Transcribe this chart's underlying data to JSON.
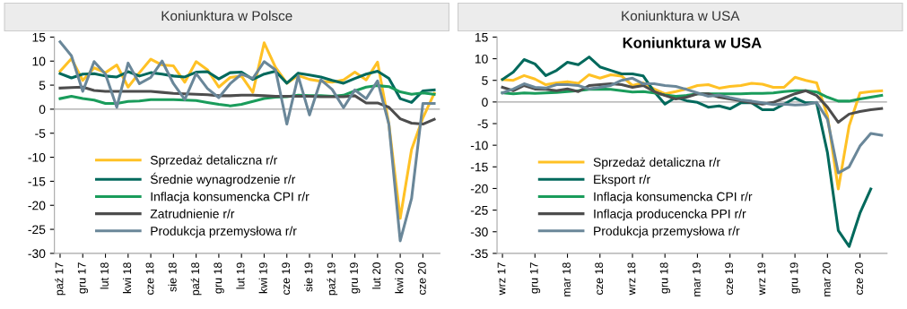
{
  "chart_data": [
    {
      "type": "line",
      "title": "Koniunktura w Polsce",
      "categories": [
        "paź 17",
        null,
        "gru 17",
        null,
        "lut 18",
        null,
        "kwi 18",
        null,
        "cze 18",
        null,
        "sie 18",
        null,
        "paź 18",
        null,
        "gru 18",
        null,
        "lut 19",
        null,
        "kwi 19",
        null,
        "cze 19",
        null,
        "sie 19",
        null,
        "paź 19",
        null,
        "gru 19",
        null,
        "lut 20",
        null,
        "kwi 20",
        null,
        "cze 20",
        null
      ],
      "ylim": [
        -30,
        15
      ],
      "yticks": [
        -30,
        -25,
        -20,
        -15,
        -10,
        -5,
        0,
        5,
        10,
        15
      ],
      "ref_lines": [
        {
          "axis": "y",
          "value": 0,
          "color": "#a6a6a6"
        }
      ],
      "grid": false,
      "legend": "bottom left",
      "line_style": "solid",
      "marker": "none",
      "series": [
        {
          "name": "Sprzedaż detaliczna r/r",
          "color": "#ffc125",
          "values": [
            7.9,
            10.5,
            6.0,
            8.6,
            7.6,
            9.2,
            4.6,
            7.6,
            10.4,
            9.2,
            9.0,
            5.6,
            9.9,
            8.2,
            4.6,
            6.6,
            6.9,
            3.5,
            13.8,
            8.7,
            5.4,
            7.0,
            6.2,
            5.8,
            5.6,
            6.1,
            7.7,
            6.1,
            9.8,
            -3.1,
            -22.7,
            -8.4,
            -1.8,
            3.3
          ]
        },
        {
          "name": "Średnie wynagrodzenie r/r",
          "color": "#00695c",
          "values": [
            7.4,
            6.5,
            7.3,
            7.4,
            6.9,
            6.7,
            7.8,
            6.9,
            7.6,
            7.3,
            6.9,
            6.7,
            7.7,
            7.8,
            6.3,
            7.6,
            7.7,
            6.2,
            7.3,
            7.9,
            5.4,
            7.5,
            7.1,
            6.7,
            6.0,
            5.4,
            6.4,
            7.3,
            7.9,
            6.4,
            2.2,
            1.4,
            3.8,
            4.0
          ]
        },
        {
          "name": "Inflacja konsumencka CPI r/r",
          "color": "#1a9c5b",
          "values": [
            2.2,
            2.7,
            2.2,
            1.9,
            1.2,
            1.2,
            1.6,
            1.7,
            2.0,
            2.0,
            2.0,
            1.9,
            1.8,
            1.4,
            1.0,
            0.7,
            1.0,
            1.6,
            2.2,
            2.5,
            2.6,
            2.9,
            2.8,
            2.8,
            2.7,
            2.9,
            3.8,
            4.6,
            4.9,
            4.7,
            3.6,
            3.1,
            3.4,
            3.1
          ]
        },
        {
          "name": "Zatrudnienie r/r",
          "color": "#4d4d4d",
          "values": [
            4.4,
            4.5,
            4.6,
            3.9,
            3.7,
            3.7,
            3.7,
            3.7,
            3.7,
            3.5,
            3.3,
            3.2,
            3.1,
            3.0,
            2.8,
            2.8,
            2.9,
            2.9,
            2.8,
            2.7,
            2.7,
            2.7,
            2.7,
            2.6,
            2.6,
            2.6,
            2.8,
            1.3,
            1.3,
            0.4,
            -2.0,
            -2.9,
            -3.1,
            -2.1
          ]
        },
        {
          "name": "Produkcja przemysłowa r/r",
          "color": "#6a8799",
          "values": [
            14.0,
            11.1,
            3.7,
            9.9,
            7.3,
            0.4,
            9.6,
            5.3,
            6.6,
            10.0,
            5.3,
            2.0,
            7.4,
            4.3,
            2.4,
            5.3,
            7.3,
            6.4,
            9.9,
            8.2,
            -3.1,
            6.9,
            -1.2,
            6.1,
            4.1,
            0.3,
            4.0,
            2.2,
            5.9,
            -3.1,
            -27.4,
            -18.6,
            1.2,
            1.2
          ]
        }
      ]
    },
    {
      "type": "line",
      "title": "Koniunktura w USA",
      "subtitle": "Koniunktura w USA",
      "categories": [
        "wrz 17",
        null,
        null,
        "gru 17",
        null,
        null,
        "mar 18",
        null,
        null,
        "cze 18",
        null,
        null,
        "wrz 18",
        null,
        null,
        "gru 18",
        null,
        null,
        "mar 19",
        null,
        null,
        "cze 19",
        null,
        null,
        "wrz 19",
        null,
        null,
        "gru 19",
        null,
        null,
        "mar 20",
        null,
        null,
        "cze 20",
        null,
        null
      ],
      "ylim": [
        -35,
        15
      ],
      "yticks": [
        -35,
        -30,
        -25,
        -20,
        -15,
        -10,
        -5,
        0,
        5,
        10,
        15
      ],
      "ref_lines": [
        {
          "axis": "y",
          "value": 0,
          "color": "#a6a6a6"
        }
      ],
      "grid": false,
      "legend": "bottom left",
      "line_style": "solid",
      "marker": "none",
      "series": [
        {
          "name": "Sprzedaż detaliczna r/r",
          "color": "#ffc125",
          "values": [
            5.2,
            5.0,
            6.1,
            5.3,
            4.0,
            4.4,
            4.7,
            4.3,
            6.3,
            5.5,
            6.3,
            6.0,
            3.8,
            4.4,
            3.0,
            1.9,
            2.4,
            3.0,
            3.8,
            4.0,
            3.2,
            3.6,
            3.8,
            4.3,
            4.1,
            3.4,
            3.4,
            5.7,
            5.0,
            4.4,
            -3.2,
            -20.1,
            -5.5,
            2.1,
            2.4,
            2.6
          ]
        },
        {
          "name": "Eksport r/r",
          "color": "#00695c",
          "values": [
            5.2,
            6.9,
            9.8,
            8.8,
            6.1,
            7.3,
            9.2,
            8.6,
            10.4,
            8.1,
            7.3,
            6.5,
            6.5,
            6.0,
            2.4,
            -0.5,
            1.1,
            0.3,
            -0.1,
            -1.2,
            -0.9,
            -1.6,
            -0.2,
            -0.2,
            -1.8,
            -1.8,
            -0.5,
            0.9,
            -0.2,
            -0.2,
            -11.7,
            -29.7,
            -33.4,
            -25.7,
            -20.1,
            null
          ]
        },
        {
          "name": "Inflacja konsumencka CPI r/r",
          "color": "#1a9c5b",
          "values": [
            2.1,
            1.9,
            2.1,
            2.0,
            2.1,
            2.2,
            2.4,
            2.6,
            2.9,
            3.0,
            2.9,
            2.6,
            2.3,
            2.4,
            2.1,
            1.6,
            1.3,
            1.5,
            1.9,
            1.9,
            1.9,
            1.9,
            1.9,
            2.0,
            2.0,
            2.1,
            2.4,
            2.6,
            2.6,
            2.3,
            1.1,
            0.2,
            0.2,
            0.7,
            1.1,
            1.5
          ]
        },
        {
          "name": "Inflacja producencka PPI r/r",
          "color": "#4d4d4d",
          "values": [
            3.4,
            2.6,
            3.8,
            3.0,
            2.9,
            2.6,
            3.0,
            2.4,
            3.8,
            4.0,
            4.2,
            4.0,
            3.4,
            3.8,
            2.4,
            1.5,
            0.7,
            1.1,
            1.9,
            1.9,
            1.1,
            0.7,
            0.3,
            -0.2,
            -0.5,
            -0.1,
            0.9,
            1.9,
            2.6,
            1.5,
            -1.2,
            -4.7,
            -2.8,
            -2.2,
            -1.8,
            -1.5
          ]
        },
        {
          "name": "Produkcja przemysłowa r/r",
          "color": "#6a8799",
          "values": [
            2.1,
            3.0,
            4.2,
            3.4,
            3.2,
            4.0,
            4.0,
            3.8,
            3.0,
            3.4,
            3.8,
            5.0,
            5.5,
            4.2,
            4.2,
            3.8,
            3.6,
            2.9,
            2.1,
            1.3,
            1.6,
            1.0,
            0.5,
            0.2,
            -0.2,
            -0.6,
            -0.5,
            -0.7,
            -0.6,
            -0.1,
            -4.0,
            -16.4,
            -15.0,
            -10.2,
            -7.3,
            -7.7
          ]
        }
      ]
    }
  ]
}
